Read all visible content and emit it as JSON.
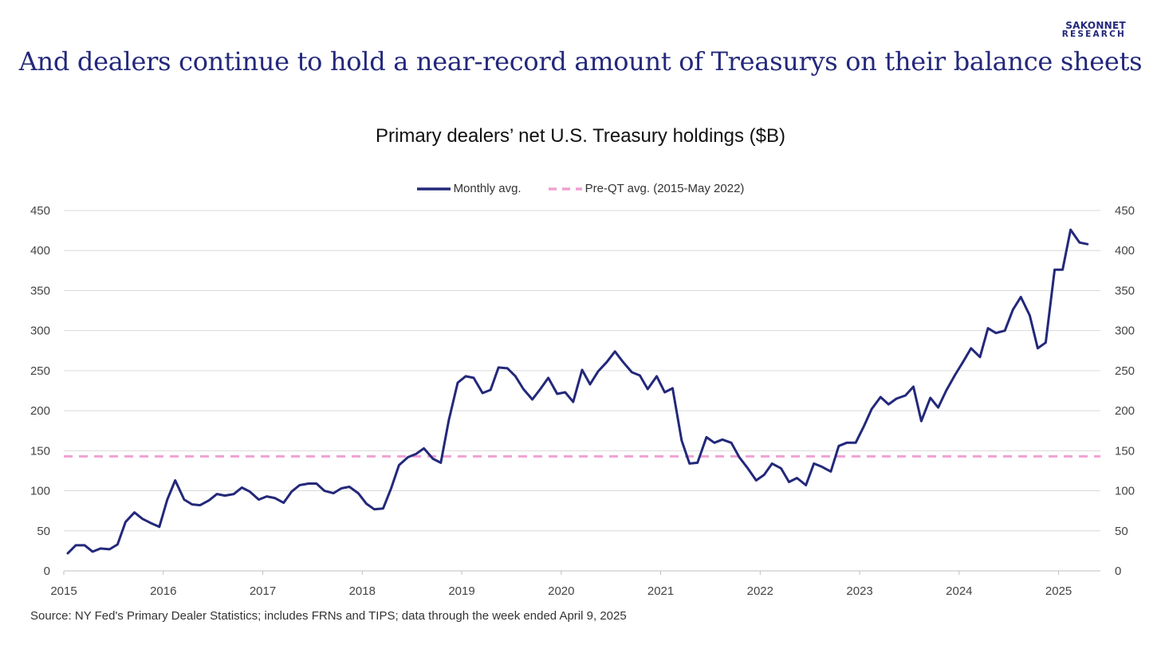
{
  "brand": {
    "line1": "SAKONNET",
    "line2": "RESEARCH"
  },
  "headline": "And dealers continue to hold a near-record amount of Treasurys on their balance sheets",
  "source": "Source: NY Fed's Primary Dealer Statistics; includes FRNs and TIPS; data through the week ended April 9, 2025",
  "colors": {
    "series": "#23287a",
    "reference": "#f0a0d4",
    "grid": "#d9d9d9",
    "axis": "#bfbfbf",
    "headline": "#23287a"
  },
  "chart_data": {
    "type": "line",
    "title": "Primary dealers’ net U.S. Treasury holdings ($B)",
    "xlabel": "",
    "ylabel": "",
    "xlim": [
      2015,
      2025.42
    ],
    "ylim": [
      0,
      450
    ],
    "yticks": [
      0,
      50,
      100,
      150,
      200,
      250,
      300,
      350,
      400,
      450
    ],
    "xtick_labels": [
      "2015",
      "2016",
      "2017",
      "2018",
      "2019",
      "2020",
      "2021",
      "2022",
      "2023",
      "2024",
      "2025"
    ],
    "secondary_y_axis": true,
    "grid": "horizontal",
    "legend": "top-center",
    "series": [
      {
        "name": "Monthly avg.",
        "style": "solid",
        "x": [
          2015.04,
          2015.12,
          2015.21,
          2015.29,
          2015.37,
          2015.46,
          2015.54,
          2015.62,
          2015.71,
          2015.79,
          2015.87,
          2015.96,
          2016.04,
          2016.12,
          2016.21,
          2016.29,
          2016.37,
          2016.46,
          2016.54,
          2016.62,
          2016.71,
          2016.79,
          2016.87,
          2016.96,
          2017.04,
          2017.12,
          2017.21,
          2017.29,
          2017.37,
          2017.46,
          2017.54,
          2017.62,
          2017.71,
          2017.79,
          2017.87,
          2017.96,
          2018.04,
          2018.12,
          2018.21,
          2018.29,
          2018.37,
          2018.46,
          2018.54,
          2018.62,
          2018.71,
          2018.79,
          2018.87,
          2018.96,
          2019.04,
          2019.12,
          2019.21,
          2019.29,
          2019.37,
          2019.46,
          2019.54,
          2019.62,
          2019.71,
          2019.79,
          2019.87,
          2019.96,
          2020.04,
          2020.12,
          2020.21,
          2020.29,
          2020.37,
          2020.46,
          2020.54,
          2020.62,
          2020.71,
          2020.79,
          2020.87,
          2020.96,
          2021.04,
          2021.12,
          2021.21,
          2021.29,
          2021.37,
          2021.46,
          2021.54,
          2021.62,
          2021.71,
          2021.79,
          2021.87,
          2021.96,
          2022.04,
          2022.12,
          2022.21,
          2022.29,
          2022.37,
          2022.46,
          2022.54,
          2022.62,
          2022.71,
          2022.79,
          2022.87,
          2022.96,
          2023.04,
          2023.12,
          2023.21,
          2023.29,
          2023.37,
          2023.46,
          2023.54,
          2023.62,
          2023.71,
          2023.79,
          2023.87,
          2023.96,
          2024.04,
          2024.12,
          2024.21,
          2024.29,
          2024.37,
          2024.46,
          2024.54,
          2024.62,
          2024.71,
          2024.79,
          2024.87,
          2024.96,
          2025.04,
          2025.12,
          2025.21,
          2025.29
        ],
        "values": [
          22,
          32,
          32,
          24,
          28,
          27,
          33,
          61,
          73,
          65,
          60,
          55,
          89,
          113,
          89,
          83,
          82,
          88,
          96,
          94,
          96,
          104,
          99,
          89,
          93,
          91,
          85,
          99,
          107,
          109,
          109,
          100,
          97,
          103,
          105,
          97,
          84,
          77,
          78,
          103,
          132,
          142,
          146,
          153,
          140,
          135,
          188,
          235,
          243,
          241,
          222,
          226,
          254,
          253,
          243,
          227,
          214,
          227,
          241,
          221,
          223,
          211,
          251,
          233,
          249,
          261,
          274,
          261,
          248,
          244,
          227,
          243,
          223,
          228,
          163,
          134,
          135,
          167,
          160,
          164,
          160,
          142,
          129,
          113,
          120,
          134,
          128,
          111,
          116,
          107,
          134,
          130,
          124,
          156,
          160,
          160,
          180,
          202,
          217,
          208,
          215,
          219,
          230,
          187,
          216,
          204,
          225,
          245,
          261,
          278,
          267,
          303,
          297,
          300,
          326,
          342,
          319,
          278,
          285,
          376,
          376,
          426,
          410,
          408
        ]
      },
      {
        "name": "Pre-QT avg. (2015-May 2022)",
        "style": "dashed",
        "value": 143
      }
    ]
  }
}
